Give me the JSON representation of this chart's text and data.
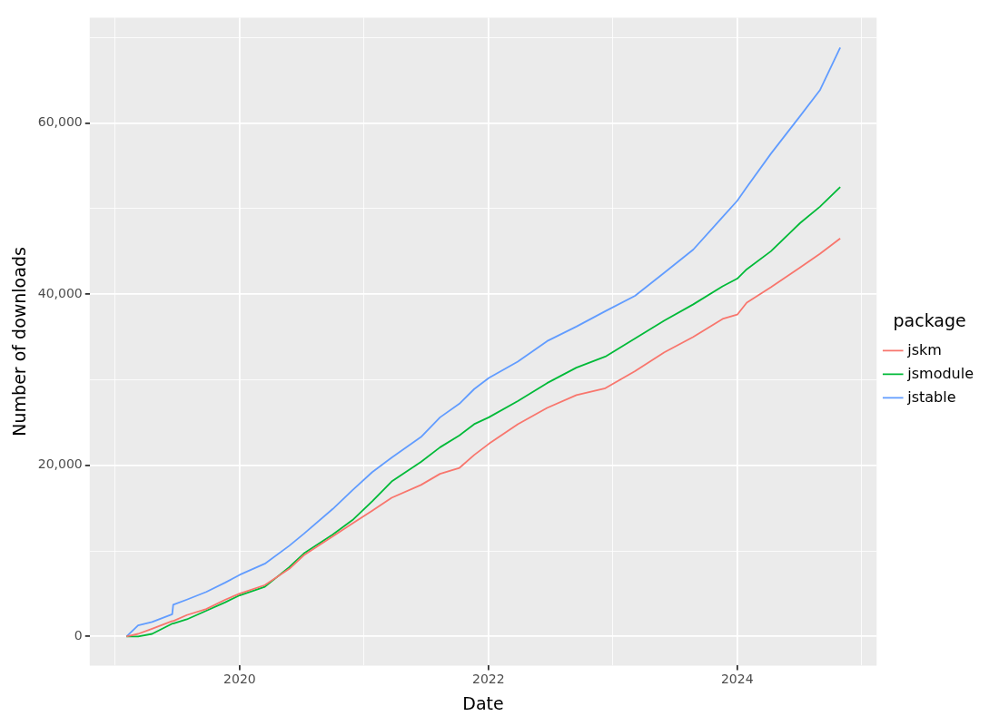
{
  "chart_data": {
    "type": "line",
    "xlabel": "Date",
    "ylabel": "Number of downloads",
    "legend_title": "package",
    "legend": "right",
    "grid": true,
    "x": [
      "2019-02-03",
      "2019-03-09",
      "2019-04-19",
      "2019-06-17",
      "2019-06-20",
      "2019-07-30",
      "2019-09-25",
      "2019-11-20",
      "2020-01-01",
      "2020-03-15",
      "2020-05-26",
      "2020-07-08",
      "2020-10-01",
      "2020-11-28",
      "2021-01-25",
      "2021-03-23",
      "2021-06-17",
      "2021-08-12",
      "2021-10-08",
      "2021-11-20",
      "2022-01-02",
      "2022-03-28",
      "2022-06-22",
      "2022-09-16",
      "2022-12-10",
      "2023-03-07",
      "2023-06-01",
      "2023-08-25",
      "2023-11-19",
      "2024-01-01",
      "2024-01-29",
      "2024-04-09",
      "2024-07-04",
      "2024-08-31",
      "2024-10-30"
    ],
    "xlim": [
      "2018-10-18",
      "2025-02-14"
    ],
    "xticks": [
      {
        "value": "2019",
        "label": null
      },
      "2020",
      {
        "value": "2021",
        "label": null
      },
      "2022",
      {
        "value": "2023",
        "label": null
      },
      "2024",
      {
        "value": "2025",
        "label": null
      }
    ],
    "ylim": [
      -3400,
      72300
    ],
    "yticks": [
      0,
      {
        "value": 10000,
        "label": null
      },
      {
        "value": 20000,
        "label": "20,000"
      },
      {
        "value": 30000,
        "label": null
      },
      {
        "value": 40000,
        "label": "40,000"
      },
      {
        "value": 50000,
        "label": null
      },
      {
        "value": 60000,
        "label": "60,000"
      },
      {
        "value": 70000,
        "label": null
      }
    ],
    "series": [
      {
        "name": "jskm",
        "color": "#f8766d",
        "values": [
          0,
          300,
          900,
          1800,
          1800,
          2500,
          3200,
          4300,
          5000,
          6000,
          7900,
          9500,
          11700,
          13200,
          14700,
          16200,
          17700,
          19000,
          19700,
          21200,
          22500,
          24800,
          26700,
          28200,
          29000,
          31000,
          33200,
          35000,
          37100,
          37600,
          39000,
          40800,
          43100,
          44700,
          46500
        ]
      },
      {
        "name": "jsmodule",
        "color": "#00ba38",
        "values": [
          0,
          0,
          300,
          1500,
          1500,
          2000,
          3000,
          4000,
          4800,
          5800,
          8100,
          9700,
          11900,
          13600,
          15800,
          18100,
          20400,
          22100,
          23500,
          24800,
          25600,
          27500,
          29600,
          31400,
          32700,
          34800,
          36900,
          38800,
          40900,
          41800,
          42900,
          45000,
          48300,
          50200,
          52500
        ]
      },
      {
        "name": "jstable",
        "color": "#619cff",
        "values": [
          0,
          1300,
          1700,
          2600,
          3700,
          4300,
          5200,
          6300,
          7200,
          8500,
          10600,
          12000,
          14900,
          17100,
          19200,
          20900,
          23300,
          25600,
          27200,
          28900,
          30200,
          32100,
          34500,
          36200,
          38000,
          39800,
          42500,
          45200,
          49000,
          50900,
          52500,
          56400,
          60800,
          63800,
          68800
        ]
      }
    ]
  }
}
